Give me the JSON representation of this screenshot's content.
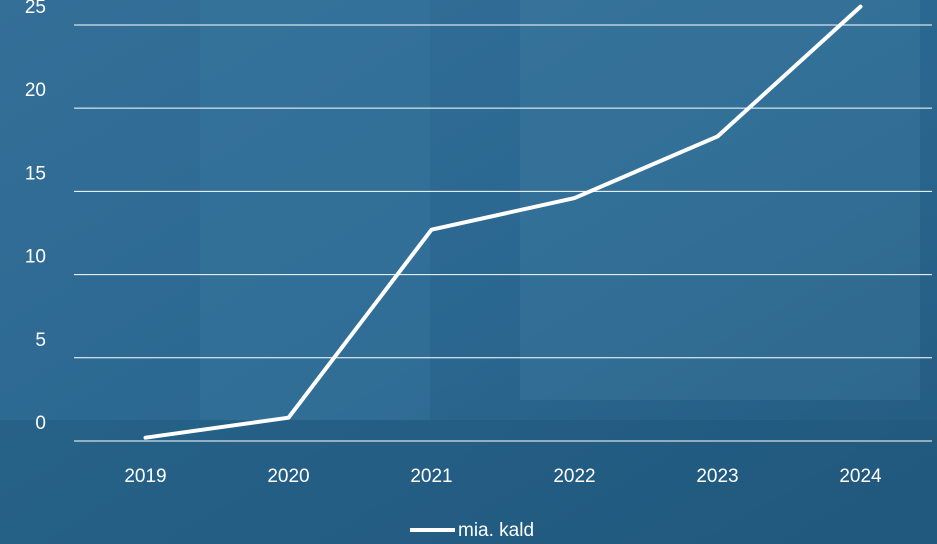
{
  "chart_data": {
    "type": "line",
    "categories": [
      "2019",
      "2020",
      "2021",
      "2022",
      "2023",
      "2024"
    ],
    "series": [
      {
        "name": "mia. kald",
        "color": "#ffffff",
        "values": [
          0.2,
          1.4,
          12.7,
          14.6,
          18.3,
          26.1
        ]
      }
    ],
    "ylim": [
      0,
      26.5
    ],
    "yticks": [
      0,
      5,
      10,
      15,
      20,
      25
    ],
    "grid": true,
    "legend": "bottom"
  }
}
